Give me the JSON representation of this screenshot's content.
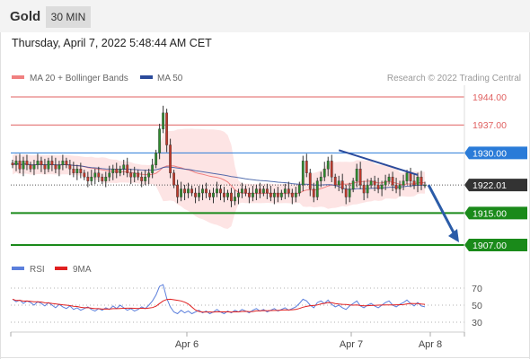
{
  "header": {
    "title": "Gold",
    "interval": "30 MIN"
  },
  "timestamp": "Thursday, April 7, 2022 5:48:44 AM CET",
  "legend": {
    "ma20_label": "MA 20 + Bollinger Bands",
    "ma50_label": "MA 50",
    "credit": "Research © 2022 Trading Central",
    "colors": {
      "ma20": "#f08080",
      "ma50": "#2b4b9b",
      "bands": "#fcd9d9"
    }
  },
  "rsi_legend": {
    "rsi_label": "RSI",
    "ma_label": "9MA",
    "colors": {
      "rsi": "#5b7fdc",
      "ma": "#e02020"
    }
  },
  "chart_data": [
    {
      "type": "candlestick",
      "x_tick_labels": [
        "Apr 6",
        "Apr 7",
        "Apr 8"
      ],
      "ylim": [
        1903,
        1946
      ],
      "price_levels": [
        {
          "value": 1944.0,
          "label": "1944.00",
          "kind": "resistance",
          "color": "#e06060",
          "tag_style": "text"
        },
        {
          "value": 1937.0,
          "label": "1937.00",
          "kind": "resistance",
          "color": "#e06060",
          "tag_style": "text"
        },
        {
          "value": 1930.0,
          "label": "1930.00",
          "kind": "pivot",
          "color": "#2a7bd8",
          "tag_style": "box"
        },
        {
          "value": 1922.01,
          "label": "1922.01",
          "kind": "last",
          "color": "#333333",
          "tag_style": "box"
        },
        {
          "value": 1915.0,
          "label": "1915.00",
          "kind": "support",
          "color": "#1a8a1a",
          "tag_style": "box"
        },
        {
          "value": 1907.0,
          "label": "1907.00",
          "kind": "support",
          "color": "#1a8a1a",
          "tag_style": "box"
        }
      ],
      "closes": [
        1927,
        1928,
        1926,
        1928,
        1927,
        1926,
        1927,
        1928,
        1927,
        1926,
        1928,
        1927,
        1926,
        1927,
        1928,
        1927,
        1926,
        1925,
        1926,
        1925,
        1924,
        1923,
        1924,
        1925,
        1924,
        1923,
        1924,
        1925,
        1926,
        1925,
        1926,
        1927,
        1925,
        1924,
        1925,
        1924,
        1923,
        1924,
        1925,
        1927,
        1930,
        1936,
        1940,
        1932,
        1925,
        1922,
        1919,
        1921,
        1920,
        1921,
        1920,
        1919,
        1920,
        1921,
        1920,
        1919,
        1920,
        1921,
        1920,
        1919,
        1920,
        1918,
        1919,
        1920,
        1921,
        1920,
        1919,
        1920,
        1921,
        1920,
        1921,
        1920,
        1919,
        1920,
        1919,
        1920,
        1921,
        1920,
        1919,
        1920,
        1922,
        1928,
        1925,
        1921,
        1919,
        1923,
        1924,
        1926,
        1928,
        1924,
        1922,
        1923,
        1921,
        1919,
        1921,
        1923,
        1926,
        1922,
        1920,
        1922,
        1923,
        1922,
        1921,
        1922,
        1923,
        1924,
        1922,
        1921,
        1922,
        1923,
        1925,
        1923,
        1922,
        1924,
        1922,
        1922.01
      ],
      "trendline": {
        "from": 1930.7,
        "to": 1924.5
      },
      "projection": {
        "from": 1922.0,
        "to": 1907.0
      },
      "rsi": {
        "ylim": [
          20,
          80
        ],
        "ticks": [
          {
            "value": 70,
            "label": "70"
          },
          {
            "value": 50,
            "label": "50"
          },
          {
            "value": 30,
            "label": "30"
          }
        ],
        "values": [
          57,
          54,
          56,
          52,
          55,
          53,
          50,
          54,
          52,
          49,
          53,
          50,
          47,
          51,
          48,
          46,
          49,
          45,
          47,
          44,
          46,
          48,
          45,
          43,
          46,
          44,
          47,
          45,
          49,
          46,
          50,
          47,
          44,
          46,
          43,
          45,
          48,
          46,
          50,
          55,
          62,
          72,
          74,
          58,
          48,
          42,
          40,
          44,
          41,
          43,
          40,
          42,
          44,
          41,
          43,
          40,
          42,
          45,
          42,
          40,
          43,
          41,
          44,
          42,
          45,
          43,
          41,
          44,
          46,
          43,
          45,
          42,
          44,
          46,
          43,
          45,
          47,
          44,
          46,
          48,
          52,
          57,
          55,
          50,
          47,
          53,
          55,
          52,
          56,
          51,
          48,
          50,
          47,
          45,
          49,
          52,
          55,
          49,
          47,
          50,
          52,
          49,
          47,
          50,
          53,
          55,
          50,
          48,
          51,
          53,
          56,
          52,
          49,
          53,
          49,
          48
        ]
      }
    }
  ]
}
